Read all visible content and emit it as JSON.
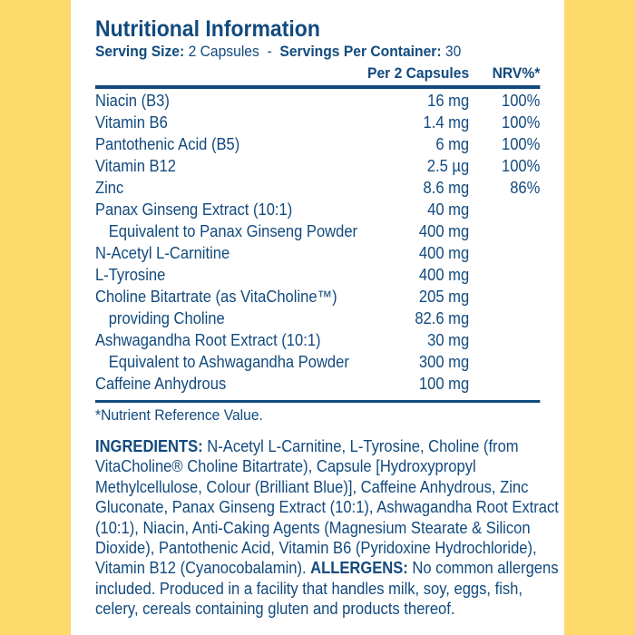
{
  "colors": {
    "background": "#fcd96a",
    "panel": "#ffffff",
    "text": "#124a7e"
  },
  "title": "Nutritional Information",
  "serving": {
    "size_label": "Serving Size:",
    "size_value": " 2 Capsules  -  ",
    "per_container_label": "Servings Per Container:",
    "per_container_value": " 30"
  },
  "table": {
    "headers": {
      "amount": "Per 2 Capsules",
      "nrv": "NRV%*"
    },
    "rows": [
      {
        "name": "Niacin (B3)",
        "amount": "16 mg",
        "nrv": "100%"
      },
      {
        "name": "Vitamin B6",
        "amount": "1.4 mg",
        "nrv": "100%"
      },
      {
        "name": "Pantothenic Acid (B5)",
        "amount": "6 mg",
        "nrv": "100%"
      },
      {
        "name": "Vitamin B12",
        "amount": "2.5 µg",
        "nrv": "100%"
      },
      {
        "name": "Zinc",
        "amount": "8.6 mg",
        "nrv": "86%"
      },
      {
        "name": "Panax Ginseng Extract (10:1)",
        "amount": "40 mg",
        "nrv": ""
      },
      {
        "name": "Equivalent to Panax Ginseng Powder",
        "amount": "400 mg",
        "nrv": "",
        "sub": true
      },
      {
        "name": "N-Acetyl L-Carnitine",
        "amount": "400 mg",
        "nrv": ""
      },
      {
        "name": "L-Tyrosine",
        "amount": "400 mg",
        "nrv": ""
      },
      {
        "name": "Choline Bitartrate (as VitaCholine™)",
        "amount": "205 mg",
        "nrv": ""
      },
      {
        "name": "providing Choline",
        "amount": "82.6 mg",
        "nrv": "",
        "sub": true
      },
      {
        "name": "Ashwagandha Root Extract (10:1)",
        "amount": "30 mg",
        "nrv": ""
      },
      {
        "name": "Equivalent to Ashwagandha Powder",
        "amount": "300 mg",
        "nrv": "",
        "sub": true
      },
      {
        "name": "Caffeine Anhydrous",
        "amount": "100 mg",
        "nrv": ""
      }
    ]
  },
  "footnote": "*Nutrient Reference Value.",
  "ingredients": {
    "lines": [
      [
        {
          "t": "INGREDIENTS:",
          "b": true
        },
        {
          "t": " N-Acetyl L-Carnitine, L-Tyrosine, Choline (from"
        }
      ],
      [
        {
          "t": "VitaCholine® Choline Bitartrate), Capsule [Hydroxypropyl"
        }
      ],
      [
        {
          "t": "Methylcellulose, Colour (Brilliant Blue)], Caffeine Anhydrous, Zinc"
        }
      ],
      [
        {
          "t": "Gluconate, Panax Ginseng Extract (10:1), Ashwagandha Root Extract"
        }
      ],
      [
        {
          "t": "(10:1), Niacin, Anti-Caking Agents (Magnesium Stearate & Silicon"
        }
      ],
      [
        {
          "t": "Dioxide), Pantothenic Acid, Vitamin B6 (Pyridoxine Hydrochloride),"
        }
      ],
      [
        {
          "t": "Vitamin B12 (Cyanocobalamin). "
        },
        {
          "t": "ALLERGENS:",
          "b": true
        },
        {
          "t": " No common allergens"
        }
      ],
      [
        {
          "t": "included. Produced in a facility that handles milk, soy, eggs, fish,"
        }
      ],
      [
        {
          "t": "celery, cereals containing gluten and products thereof."
        }
      ]
    ]
  }
}
